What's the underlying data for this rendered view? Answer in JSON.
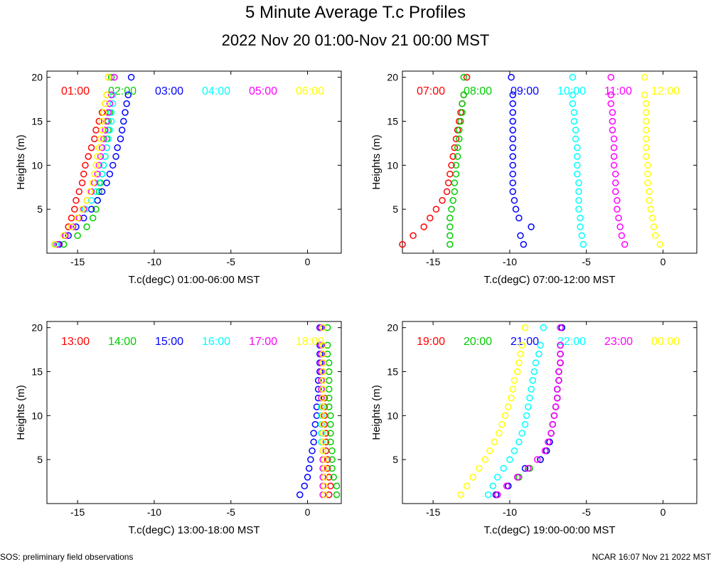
{
  "title": "5 Minute Average T.c Profiles",
  "subtitle": "2022 Nov 20 01:00-Nov 21 00:00 MST",
  "footer_left": "SOS: preliminary field observations",
  "footer_right": "NCAR 16:07 Nov 21 2022 MST",
  "chart_data": [
    {
      "type": "scatter",
      "ylabel": "Heights (m)",
      "xlabel": "T.c(degC) 01:00-06:00 MST",
      "xlim": [
        -17,
        2.2
      ],
      "ylim": [
        0,
        20.7
      ],
      "xticks": [
        -15,
        -10,
        -5,
        0
      ],
      "yticks": [
        5,
        10,
        15,
        20
      ],
      "series": [
        {
          "name": "01:00",
          "color": "#ff0000",
          "x": [
            -16.5,
            -15.8,
            -15.6,
            -15.4,
            -15.2,
            -15.1,
            -14.9,
            -14.7,
            -14.6,
            -14.5,
            -14.3,
            -14.1,
            -13.9,
            -13.8,
            -13.6,
            -13.4,
            -13.2,
            -13.1,
            -13.0
          ]
        },
        {
          "name": "02:00",
          "color": "#00cc00",
          "x": [
            -15.9,
            -15.0,
            -14.4,
            -14.0,
            -13.8,
            -13.7,
            -13.6,
            -13.5,
            -13.4,
            -13.3,
            -13.2,
            -13.1,
            -13.1,
            -13.0,
            -13.0,
            -12.9,
            -12.9,
            -12.8,
            -12.8
          ]
        },
        {
          "name": "03:00",
          "color": "#0000ff",
          "x": [
            -16.2,
            -15.6,
            -15.1,
            -14.6,
            -14.1,
            -13.7,
            -13.4,
            -13.1,
            -12.9,
            -12.7,
            -12.5,
            -12.4,
            -12.2,
            -12.1,
            -12.0,
            -11.9,
            -11.8,
            -11.7,
            -11.5
          ]
        },
        {
          "name": "04:00",
          "color": "#00ffff",
          "x": [
            -16.4,
            -15.9,
            -15.3,
            -14.9,
            -14.5,
            -14.1,
            -13.8,
            -13.6,
            -13.4,
            -13.3,
            -13.2,
            -13.1,
            -13.0,
            -12.9,
            -12.8,
            -12.8,
            -12.7,
            -12.7,
            -12.6
          ]
        },
        {
          "name": "05:00",
          "color": "#ff00ff",
          "x": [
            -16.3,
            -15.8,
            -15.3,
            -14.9,
            -14.6,
            -14.4,
            -14.1,
            -13.9,
            -13.7,
            -13.6,
            -13.5,
            -13.4,
            -13.3,
            -13.2,
            -13.1,
            -13.0,
            -12.9,
            -12.8,
            -12.6
          ]
        },
        {
          "name": "06:00",
          "color": "#ffff00",
          "x": [
            -16.5,
            -15.9,
            -15.4,
            -15.0,
            -14.7,
            -14.4,
            -14.2,
            -14.0,
            -13.9,
            -13.8,
            -13.7,
            -13.6,
            -13.5,
            -13.4,
            -13.4,
            -13.3,
            -13.2,
            -13.1,
            -13.0
          ]
        }
      ]
    },
    {
      "type": "scatter",
      "ylabel": "Heights (m)",
      "xlabel": "T.c(degC) 07:00-12:00 MST",
      "xlim": [
        -17,
        2.2
      ],
      "ylim": [
        0,
        20.7
      ],
      "xticks": [
        -15,
        -10,
        -5,
        0
      ],
      "yticks": [
        5,
        10,
        15,
        20
      ],
      "series": [
        {
          "name": "07:00",
          "color": "#ff0000",
          "x": [
            -17.0,
            -16.3,
            -15.6,
            -15.2,
            -14.8,
            -14.4,
            -14.1,
            -14.0,
            -13.9,
            -13.8,
            -13.7,
            -13.6,
            -13.5,
            -13.4,
            -13.3,
            -13.2,
            -13.1,
            -13.0,
            -12.8
          ]
        },
        {
          "name": "08:00",
          "color": "#00cc00",
          "x": [
            -13.9,
            -13.9,
            -13.9,
            -13.9,
            -13.8,
            -13.7,
            -13.6,
            -13.6,
            -13.5,
            -13.5,
            -13.4,
            -13.4,
            -13.3,
            -13.3,
            -13.2,
            -13.1,
            -13.1,
            -13.0,
            -13.0
          ]
        },
        {
          "name": "09:00",
          "color": "#0000ff",
          "x": [
            -9.1,
            -9.3,
            -8.6,
            -9.4,
            -9.6,
            -9.7,
            -9.8,
            -9.8,
            -9.8,
            -9.8,
            -9.8,
            -9.8,
            -9.8,
            -9.8,
            -9.8,
            -9.8,
            -9.8,
            -9.8,
            -9.9
          ]
        },
        {
          "name": "10:00",
          "color": "#00ffff",
          "x": [
            -5.2,
            -5.3,
            -5.4,
            -5.4,
            -5.5,
            -5.5,
            -5.5,
            -5.5,
            -5.6,
            -5.6,
            -5.6,
            -5.6,
            -5.7,
            -5.7,
            -5.8,
            -5.8,
            -5.9,
            -5.9,
            -5.9
          ]
        },
        {
          "name": "11:00",
          "color": "#ff00ff",
          "x": [
            -2.5,
            -2.7,
            -2.8,
            -2.9,
            -3.0,
            -3.0,
            -3.1,
            -3.1,
            -3.1,
            -3.2,
            -3.2,
            -3.2,
            -3.2,
            -3.3,
            -3.3,
            -3.3,
            -3.4,
            -3.4,
            -3.4
          ]
        },
        {
          "name": "12:00",
          "color": "#ffff00",
          "x": [
            -0.2,
            -0.5,
            -0.6,
            -0.7,
            -0.8,
            -0.9,
            -0.9,
            -1.0,
            -1.0,
            -1.0,
            -1.1,
            -1.1,
            -1.1,
            -1.1,
            -1.1,
            -1.1,
            -1.1,
            -1.2,
            -1.2
          ]
        }
      ]
    },
    {
      "type": "scatter",
      "ylabel": "Heights (m)",
      "xlabel": "T.c(degC) 13:00-18:00 MST",
      "xlim": [
        -17,
        2.2
      ],
      "ylim": [
        0,
        20.7
      ],
      "xticks": [
        -15,
        -10,
        -5,
        0
      ],
      "yticks": [
        5,
        10,
        15,
        20
      ],
      "series": [
        {
          "name": "13:00",
          "color": "#ff0000",
          "x": [
            1.4,
            1.5,
            1.4,
            1.3,
            1.3,
            1.2,
            1.2,
            1.2,
            1.1,
            1.1,
            1.1,
            1.1,
            1.0,
            1.0,
            1.0,
            1.0,
            1.0,
            0.9,
            0.9
          ]
        },
        {
          "name": "14:00",
          "color": "#00cc00",
          "x": [
            1.9,
            1.9,
            1.7,
            1.6,
            1.6,
            1.6,
            1.5,
            1.5,
            1.5,
            1.5,
            1.4,
            1.4,
            1.4,
            1.4,
            1.4,
            1.4,
            1.3,
            1.3,
            1.3
          ]
        },
        {
          "name": "15:00",
          "color": "#0000ff",
          "x": [
            -0.5,
            -0.2,
            0.0,
            0.1,
            0.2,
            0.3,
            0.4,
            0.4,
            0.5,
            0.6,
            0.6,
            0.7,
            0.7,
            0.7,
            0.8,
            0.8,
            0.8,
            0.8,
            0.8
          ]
        },
        {
          "name": "16:00",
          "color": "#00ffff",
          "x": [
            1.0,
            1.0,
            1.0,
            1.0,
            1.0,
            1.0,
            0.9,
            0.9,
            0.9,
            0.9,
            0.9,
            0.9,
            0.9,
            0.9,
            0.9,
            0.9,
            0.9,
            0.9,
            0.9
          ]
        },
        {
          "name": "17:00",
          "color": "#ff00ff",
          "x": [
            1.0,
            1.0,
            1.0,
            1.0,
            1.0,
            1.0,
            1.0,
            1.0,
            1.0,
            1.0,
            1.0,
            0.9,
            0.9,
            0.9,
            0.9,
            0.9,
            0.9,
            0.9,
            0.9
          ]
        },
        {
          "name": "18:00",
          "color": "#ffff00",
          "x": [
            1.1,
            1.1,
            1.1,
            1.1,
            1.1,
            1.0,
            1.0,
            1.0,
            1.0,
            1.0,
            1.0,
            1.0,
            1.0,
            1.0,
            1.0,
            1.0,
            1.0,
            1.0,
            1.0
          ]
        }
      ]
    },
    {
      "type": "scatter",
      "ylabel": "Heights (m)",
      "xlabel": "T.c(degC) 19:00-00:00 MST",
      "xlim": [
        -17,
        2.2
      ],
      "ylim": [
        0,
        20.7
      ],
      "xticks": [
        -15,
        -10,
        -5,
        0
      ],
      "yticks": [
        5,
        10,
        15,
        20
      ],
      "series": [
        {
          "name": "19:00",
          "color": "#ff0000",
          "x": [
            -10.8,
            -10.1,
            -9.4,
            -8.7,
            -8.0,
            -7.6,
            -7.4,
            -7.3,
            -7.2,
            -7.1,
            -7.0,
            -6.9,
            -6.9,
            -6.8,
            -6.8,
            -6.7,
            -6.7,
            -6.7,
            -6.6
          ]
        },
        {
          "name": "20:00",
          "color": "#00cc00",
          "x": [
            -10.9,
            -10.1,
            -9.4,
            -8.7,
            -8.0,
            -7.6,
            -7.4,
            -7.3,
            -7.2,
            -7.1,
            -7.0,
            -6.9,
            -6.9,
            -6.8,
            -6.8,
            -6.7,
            -6.7,
            -6.7,
            -6.6
          ]
        },
        {
          "name": "21:00",
          "color": "#0000ff",
          "x": [
            -10.9,
            -10.1,
            -9.5,
            -9.0,
            -8.0,
            -7.6,
            -7.4,
            -7.3,
            -7.2,
            -7.1,
            -7.0,
            -6.9,
            -6.9,
            -6.8,
            -6.8,
            -6.7,
            -6.7,
            -6.7,
            -6.6
          ]
        },
        {
          "name": "22:00",
          "color": "#00ffff",
          "x": [
            -11.4,
            -11.1,
            -10.8,
            -10.4,
            -10.0,
            -9.7,
            -9.4,
            -9.2,
            -9.0,
            -8.9,
            -8.8,
            -8.7,
            -8.6,
            -8.5,
            -8.4,
            -8.3,
            -8.1,
            -8.0,
            -7.8
          ]
        },
        {
          "name": "23:00",
          "color": "#ff00ff",
          "x": [
            -10.8,
            -10.2,
            -9.5,
            -8.8,
            -8.2,
            -7.7,
            -7.5,
            -7.3,
            -7.2,
            -7.1,
            -7.0,
            -6.9,
            -6.9,
            -6.8,
            -6.8,
            -6.7,
            -6.7,
            -6.7,
            -6.7
          ]
        },
        {
          "name": "00:00",
          "color": "#ffff00",
          "x": [
            -13.2,
            -12.8,
            -12.4,
            -12.0,
            -11.6,
            -11.3,
            -11.0,
            -10.7,
            -10.5,
            -10.3,
            -10.1,
            -9.9,
            -9.8,
            -9.7,
            -9.5,
            -9.4,
            -9.3,
            -9.2,
            -9.0
          ]
        }
      ]
    }
  ]
}
